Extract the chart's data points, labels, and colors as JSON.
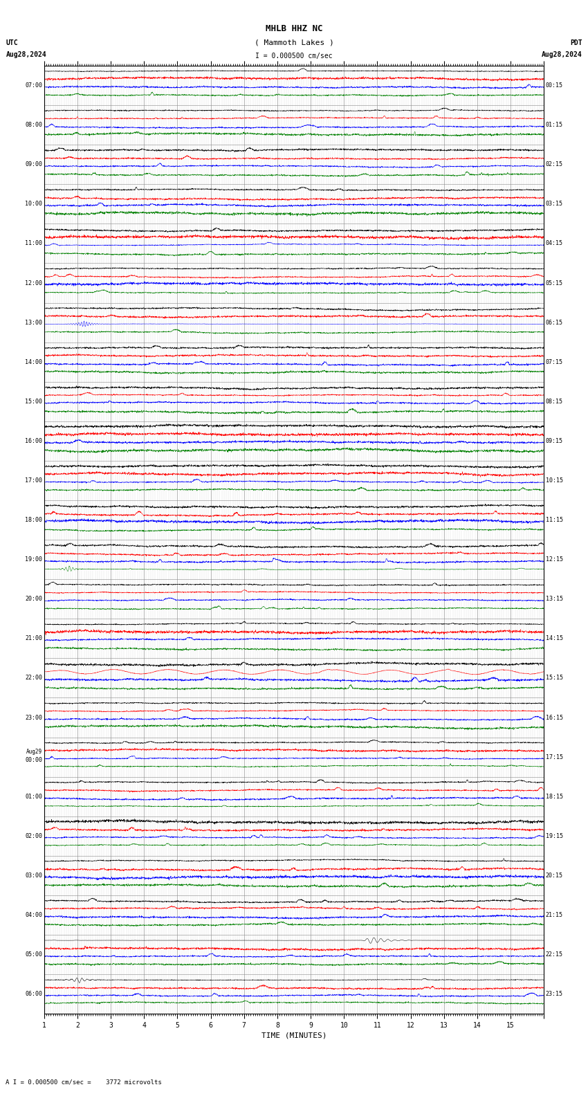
{
  "title_line1": "MHLB HHZ NC",
  "title_line2": "( Mammoth Lakes )",
  "scale_label": "I = 0.000500 cm/sec",
  "utc_label": "UTC",
  "utc_date": "Aug28,2024",
  "pdt_label": "PDT",
  "pdt_date": "Aug28,2024",
  "bottom_label": "A I = 0.000500 cm/sec =    3772 microvolts",
  "xlabel": "TIME (MINUTES)",
  "bg_color": "#ffffff",
  "trace_colors": [
    "black",
    "red",
    "blue",
    "green"
  ],
  "left_labels": [
    "07:00",
    "08:00",
    "09:00",
    "10:00",
    "11:00",
    "12:00",
    "13:00",
    "14:00",
    "15:00",
    "16:00",
    "17:00",
    "18:00",
    "19:00",
    "20:00",
    "21:00",
    "22:00",
    "23:00",
    "Aug29\n00:00",
    "01:00",
    "02:00",
    "03:00",
    "04:00",
    "05:00",
    "06:00"
  ],
  "right_labels": [
    "00:15",
    "01:15",
    "02:15",
    "03:15",
    "04:15",
    "05:15",
    "06:15",
    "07:15",
    "08:15",
    "09:15",
    "10:15",
    "11:15",
    "12:15",
    "13:15",
    "14:15",
    "15:15",
    "16:15",
    "17:15",
    "18:15",
    "19:15",
    "20:15",
    "21:15",
    "22:15",
    "23:15"
  ],
  "n_rows": 24,
  "n_traces_per_row": 4,
  "xmin": 0,
  "xmax": 15
}
